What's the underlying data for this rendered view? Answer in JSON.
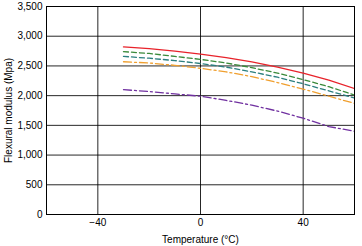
{
  "chart_data": {
    "type": "line",
    "x_label": "Temperature (°C)",
    "y_label": "Flexural modulus (Mpa)",
    "xlim": [
      -60,
      60
    ],
    "xticks": [
      -40,
      0,
      40
    ],
    "ylim": [
      0,
      3500
    ],
    "yticks": [
      0,
      500,
      1000,
      1500,
      2000,
      2500,
      3000,
      3500
    ],
    "grid": true,
    "x": [
      -30,
      -20,
      -10,
      0,
      10,
      20,
      30,
      40,
      50,
      60
    ],
    "series": [
      {
        "color": "#e8232b",
        "line_style": "solid",
        "values": [
          2820,
          2790,
          2750,
          2700,
          2640,
          2570,
          2480,
          2380,
          2260,
          2120
        ]
      },
      {
        "color": "#3a8a3a",
        "line_style": "dashed",
        "values": [
          2740,
          2710,
          2660,
          2610,
          2550,
          2470,
          2380,
          2270,
          2150,
          2010
        ]
      },
      {
        "color": "#2b7f7f",
        "line_style": "dashed",
        "values": [
          2660,
          2630,
          2590,
          2540,
          2480,
          2400,
          2310,
          2200,
          2080,
          1960
        ]
      },
      {
        "color": "#f0a030",
        "line_style": "dashdot",
        "values": [
          2570,
          2550,
          2510,
          2460,
          2400,
          2320,
          2220,
          2110,
          1990,
          1870
        ]
      },
      {
        "color": "#7030a0",
        "line_style": "dashdot",
        "values": [
          2100,
          2070,
          2030,
          1990,
          1920,
          1840,
          1740,
          1620,
          1480,
          1400
        ]
      }
    ]
  }
}
